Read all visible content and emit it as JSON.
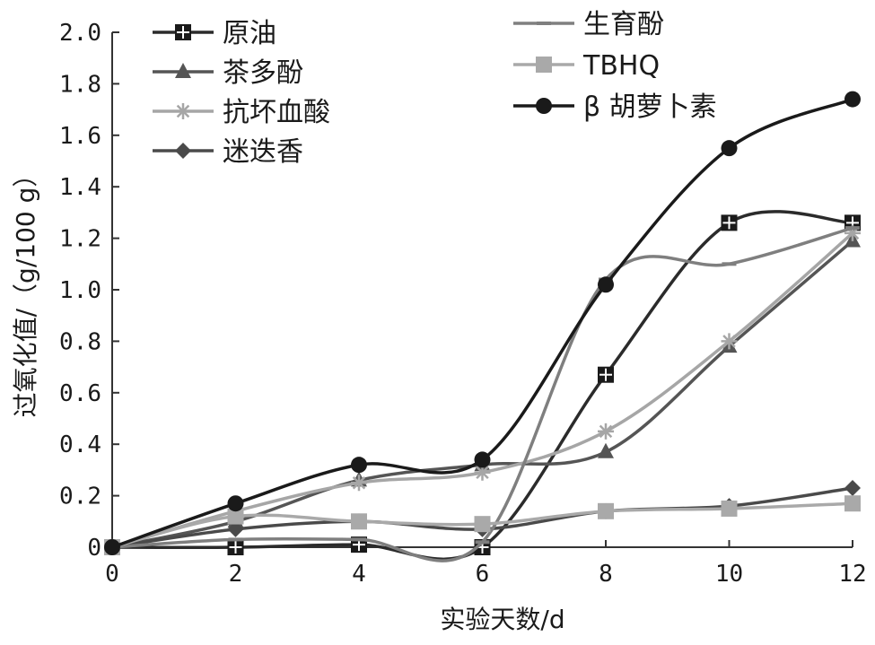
{
  "chart_data": {
    "type": "line",
    "xlabel": "实验天数/d",
    "ylabel": "过氧化值/（g/100 g）",
    "x": [
      0,
      2,
      4,
      6,
      8,
      10,
      12
    ],
    "xticks": [
      "0",
      "2",
      "4",
      "6",
      "8",
      "10",
      "12"
    ],
    "yticks": [
      "0",
      "0.2",
      "0.4",
      "0.6",
      "0.8",
      "1.0",
      "1.2",
      "1.4",
      "1.6",
      "1.8",
      "2.0"
    ],
    "xlim": [
      0,
      12
    ],
    "ylim": [
      0,
      2.0
    ],
    "grid": false,
    "legend_position": "top-left, two columns",
    "series": [
      {
        "name": "原油",
        "marker": "square-cross",
        "color": "#2b2b2b",
        "values": [
          0,
          0,
          0.01,
          0,
          0.67,
          1.26,
          1.26
        ]
      },
      {
        "name": "茶多酚",
        "marker": "triangle",
        "color": "#555555",
        "values": [
          0,
          0.1,
          0.26,
          0.32,
          0.37,
          0.78,
          1.19
        ]
      },
      {
        "name": "抗坏血酸",
        "marker": "asterisk",
        "color": "#a6a6a6",
        "values": [
          0,
          0.14,
          0.25,
          0.29,
          0.45,
          0.8,
          1.22
        ]
      },
      {
        "name": "迷迭香",
        "marker": "diamond",
        "color": "#4a4a4a",
        "values": [
          0,
          0.07,
          0.1,
          0.07,
          0.14,
          0.16,
          0.23
        ]
      },
      {
        "name": "生育酚",
        "marker": "dash",
        "color": "#7f7f7f",
        "values": [
          0,
          0.03,
          0.03,
          0.02,
          1.04,
          1.1,
          1.24
        ]
      },
      {
        "name": "TBHQ",
        "marker": "square",
        "color": "#a9a9a9",
        "values": [
          0,
          0.12,
          0.1,
          0.09,
          0.14,
          0.15,
          0.17
        ]
      },
      {
        "name": "β 胡萝卜素",
        "marker": "circle",
        "color": "#1a1a1a",
        "values": [
          0,
          0.17,
          0.32,
          0.34,
          1.02,
          1.55,
          1.74
        ]
      }
    ]
  }
}
